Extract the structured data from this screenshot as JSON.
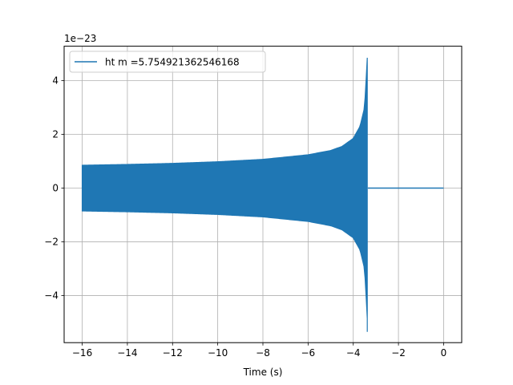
{
  "chart_data": {
    "type": "line",
    "xlabel": "Time (s)",
    "ylabel": "",
    "y_offset_label": "1e−23",
    "xlim": [
      -16.8,
      0.8
    ],
    "ylim": [
      -5.75,
      5.28
    ],
    "xticks": [
      -16,
      -14,
      -12,
      -10,
      -8,
      -6,
      -4,
      -2,
      0
    ],
    "xtick_labels": [
      "−16",
      "−14",
      "−12",
      "−10",
      "−8",
      "−6",
      "−4",
      "−2",
      "0"
    ],
    "yticks": [
      -4,
      -2,
      0,
      2,
      4
    ],
    "ytick_labels": [
      "−4",
      "−2",
      "0",
      "2",
      "4"
    ],
    "grid": true,
    "legend_position": "top-left",
    "series": [
      {
        "name": "ht m =5.754921362546168",
        "color": "#1f77b4",
        "envelope": {
          "t": [
            -16.0,
            -14.0,
            -12.0,
            -10.0,
            -8.0,
            -6.0,
            -5.0,
            -4.5,
            -4.0,
            -3.7,
            -3.5,
            -3.42,
            -3.38
          ],
          "amplitude": [
            0.85,
            0.88,
            0.92,
            0.98,
            1.07,
            1.24,
            1.4,
            1.55,
            1.85,
            2.3,
            3.0,
            4.2,
            4.85
          ]
        },
        "merger_time": -3.38,
        "merger_minimum": -5.35,
        "flat_after_merger": {
          "x": [
            -3.35,
            0.0
          ],
          "y": [
            0.0,
            0.0
          ]
        }
      }
    ]
  }
}
